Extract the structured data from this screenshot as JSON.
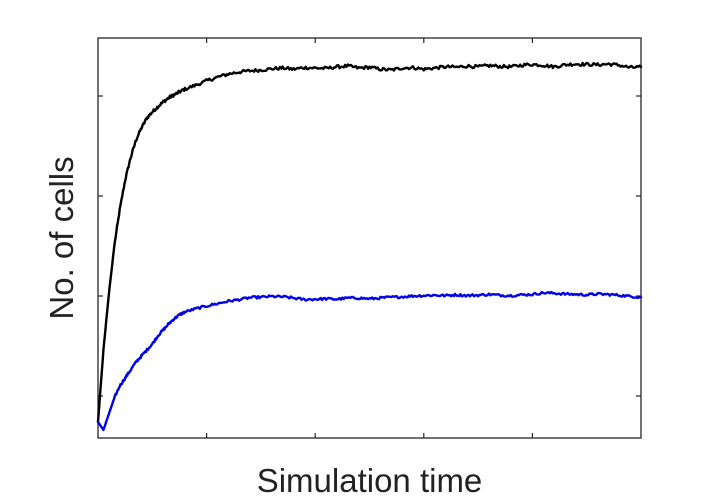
{
  "chart_data": {
    "type": "line",
    "title": "",
    "xlabel": "Simulation time",
    "ylabel": "No. of cells",
    "xlim": [
      0,
      1
    ],
    "ylim": [
      0,
      1
    ],
    "x_ticks": [
      0.2,
      0.4,
      0.6,
      0.8
    ],
    "y_ticks": [
      0.105,
      0.355,
      0.605,
      0.855
    ],
    "tick_labels_shown": false,
    "grid": false,
    "legend": "none",
    "series": [
      {
        "color": "#000000",
        "noise": 0.004,
        "x": [
          0,
          0.01,
          0.02,
          0.03,
          0.04,
          0.05,
          0.06,
          0.07,
          0.08,
          0.09,
          0.1,
          0.11,
          0.12,
          0.13,
          0.14,
          0.15,
          0.16,
          0.18,
          0.2,
          0.22,
          0.24,
          0.26,
          0.28,
          0.3,
          0.32,
          0.34,
          0.36,
          0.38,
          0.4,
          0.42,
          0.44,
          0.46,
          0.48,
          0.5,
          0.52,
          0.54,
          0.56,
          0.58,
          0.6,
          0.62,
          0.64,
          0.66,
          0.68,
          0.7,
          0.72,
          0.74,
          0.76,
          0.78,
          0.8,
          0.82,
          0.84,
          0.86,
          0.88,
          0.9,
          0.92,
          0.94,
          0.96,
          0.98,
          1.0
        ],
        "y": [
          0.04,
          0.22,
          0.36,
          0.48,
          0.57,
          0.645,
          0.7,
          0.745,
          0.775,
          0.8,
          0.815,
          0.828,
          0.84,
          0.85,
          0.858,
          0.865,
          0.872,
          0.882,
          0.893,
          0.902,
          0.91,
          0.915,
          0.918,
          0.92,
          0.923,
          0.925,
          0.922,
          0.926,
          0.925,
          0.924,
          0.928,
          0.93,
          0.925,
          0.927,
          0.922,
          0.92,
          0.925,
          0.926,
          0.922,
          0.925,
          0.928,
          0.927,
          0.93,
          0.928,
          0.931,
          0.929,
          0.928,
          0.932,
          0.934,
          0.932,
          0.928,
          0.933,
          0.935,
          0.934,
          0.933,
          0.935,
          0.932,
          0.926,
          0.928
        ]
      },
      {
        "color": "#0000ee",
        "noise": 0.003,
        "x": [
          0,
          0.01,
          0.02,
          0.03,
          0.04,
          0.05,
          0.06,
          0.07,
          0.08,
          0.09,
          0.1,
          0.11,
          0.12,
          0.13,
          0.14,
          0.15,
          0.16,
          0.18,
          0.2,
          0.22,
          0.24,
          0.26,
          0.28,
          0.3,
          0.32,
          0.34,
          0.36,
          0.38,
          0.4,
          0.42,
          0.44,
          0.46,
          0.48,
          0.5,
          0.52,
          0.54,
          0.56,
          0.58,
          0.6,
          0.62,
          0.64,
          0.66,
          0.68,
          0.7,
          0.72,
          0.74,
          0.76,
          0.78,
          0.8,
          0.82,
          0.84,
          0.86,
          0.88,
          0.9,
          0.92,
          0.94,
          0.96,
          0.98,
          1.0
        ],
        "y": [
          0.04,
          0.02,
          0.06,
          0.1,
          0.13,
          0.15,
          0.17,
          0.19,
          0.205,
          0.22,
          0.235,
          0.255,
          0.27,
          0.285,
          0.298,
          0.308,
          0.315,
          0.323,
          0.33,
          0.336,
          0.342,
          0.346,
          0.351,
          0.352,
          0.354,
          0.353,
          0.35,
          0.346,
          0.347,
          0.348,
          0.347,
          0.35,
          0.35,
          0.348,
          0.35,
          0.352,
          0.353,
          0.355,
          0.356,
          0.357,
          0.356,
          0.358,
          0.356,
          0.357,
          0.359,
          0.357,
          0.356,
          0.358,
          0.359,
          0.363,
          0.362,
          0.36,
          0.359,
          0.358,
          0.36,
          0.359,
          0.357,
          0.354,
          0.352
        ]
      }
    ]
  }
}
